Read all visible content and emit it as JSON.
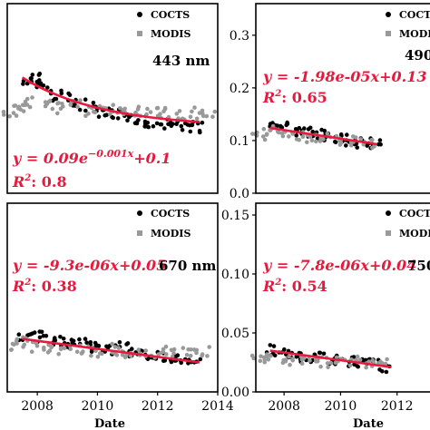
{
  "chart_data": [
    {
      "type": "scatter",
      "panel": "top-left",
      "wavelength": "443 nm",
      "equation": "y = 0.09e^{-0.001x}+0.1",
      "equation_parts": {
        "pre": "y = 0.09e",
        "sup": "−0.001x",
        "post": "+0.1"
      },
      "r2_label": "R",
      "r2_value": ": 0.8",
      "legend": [
        "COCTS",
        "MODIS"
      ],
      "xlim": [
        2007.0,
        2014.0
      ],
      "ylim": [
        0.0,
        0.3
      ],
      "x_ticks": [],
      "y_ticks": [],
      "xlabel": "",
      "ylabel": "",
      "series": [
        {
          "name": "COCTS",
          "color": "#000000",
          "x": [
            2007.6,
            2007.9,
            2008.2,
            2008.6,
            2009.0,
            2009.4,
            2009.8,
            2010.2,
            2010.6,
            2011.0,
            2011.4,
            2011.8,
            2012.2,
            2012.6,
            2013.0,
            2013.3
          ],
          "y": [
            0.178,
            0.185,
            0.17,
            0.155,
            0.15,
            0.14,
            0.135,
            0.128,
            0.125,
            0.12,
            0.118,
            0.113,
            0.11,
            0.108,
            0.105,
            0.104
          ]
        },
        {
          "name": "MODIS",
          "color": "#999999",
          "x": [
            2007.1,
            2007.4,
            2007.8,
            2008.3,
            2008.8,
            2009.3,
            2009.8,
            2010.3,
            2010.8,
            2011.3,
            2011.8,
            2012.3,
            2012.8,
            2013.3,
            2013.7
          ],
          "y": [
            0.13,
            0.138,
            0.145,
            0.14,
            0.135,
            0.138,
            0.13,
            0.132,
            0.128,
            0.13,
            0.126,
            0.128,
            0.125,
            0.127,
            0.128
          ]
        }
      ],
      "fit": {
        "color": "#e8193c",
        "x_range": [
          2007.5,
          2013.4
        ],
        "y_start": 0.183,
        "y_end": 0.104
      }
    },
    {
      "type": "scatter",
      "panel": "top-right",
      "wavelength": "490",
      "equation": "y = -1.98e-05x+0.13",
      "equation_parts": {
        "pre": "y = -1.98e-05x+0.13",
        "sup": "",
        "post": ""
      },
      "r2_label": "R",
      "r2_value": ": 0.65",
      "legend": [
        "COCTS",
        "MODIS"
      ],
      "xlim": [
        2007.0,
        2014.0
      ],
      "ylim": [
        0.0,
        0.36
      ],
      "x_ticks": [],
      "y_ticks": [
        0.0,
        0.1,
        0.2,
        0.3
      ],
      "y_tick_labels": [
        "0.0",
        "0.1",
        "0.2",
        "0.3"
      ],
      "xlabel": "",
      "ylabel": "",
      "series": [
        {
          "name": "COCTS",
          "color": "#000000",
          "x": [
            2007.6,
            2008.0,
            2008.4,
            2008.8,
            2009.2,
            2009.6,
            2010.0,
            2010.4,
            2010.8,
            2011.2
          ],
          "y": [
            0.125,
            0.13,
            0.118,
            0.115,
            0.112,
            0.108,
            0.104,
            0.1,
            0.097,
            0.094
          ]
        },
        {
          "name": "MODIS",
          "color": "#999999",
          "x": [
            2007.1,
            2007.5,
            2008.0,
            2008.5,
            2009.0,
            2009.5,
            2010.0,
            2010.5,
            2011.0
          ],
          "y": [
            0.112,
            0.118,
            0.11,
            0.108,
            0.106,
            0.104,
            0.1,
            0.098,
            0.095
          ]
        }
      ],
      "fit": {
        "color": "#e8193c",
        "x_range": [
          2007.5,
          2011.3
        ],
        "y_start": 0.124,
        "y_end": 0.093
      }
    },
    {
      "type": "scatter",
      "panel": "bottom-left",
      "wavelength": "670 nm",
      "equation": "y = -9.3e-06x+0.05",
      "equation_parts": {
        "pre": "y = -9.3e-06x+0.05",
        "sup": "",
        "post": ""
      },
      "r2_label": "R",
      "r2_value": ": 0.38",
      "legend": [
        "COCTS",
        "MODIS"
      ],
      "xlim": [
        2007.0,
        2014.0
      ],
      "ylim": [
        0.0,
        0.16
      ],
      "x_ticks": [
        2008,
        2010,
        2012,
        2014
      ],
      "x_tick_labels": [
        "2008",
        "2010",
        "2012",
        "2014"
      ],
      "y_ticks": [],
      "xlabel": "Date",
      "ylabel": "",
      "series": [
        {
          "name": "COCTS",
          "color": "#000000",
          "x": [
            2007.6,
            2008.0,
            2008.4,
            2008.8,
            2009.2,
            2009.6,
            2010.0,
            2010.4,
            2010.8,
            2011.2,
            2011.6,
            2012.0,
            2012.4,
            2012.8,
            2013.2
          ],
          "y": [
            0.045,
            0.047,
            0.043,
            0.042,
            0.04,
            0.041,
            0.037,
            0.036,
            0.038,
            0.033,
            0.032,
            0.03,
            0.029,
            0.027,
            0.025
          ]
        },
        {
          "name": "MODIS",
          "color": "#999999",
          "x": [
            2007.1,
            2007.5,
            2008.0,
            2008.5,
            2009.0,
            2009.5,
            2010.0,
            2010.5,
            2011.0,
            2011.5,
            2012.0,
            2012.5,
            2013.0,
            2013.5
          ],
          "y": [
            0.04,
            0.042,
            0.038,
            0.036,
            0.037,
            0.035,
            0.034,
            0.036,
            0.033,
            0.035,
            0.032,
            0.034,
            0.033,
            0.035
          ]
        }
      ],
      "fit": {
        "color": "#e8193c",
        "x_range": [
          2007.5,
          2013.4
        ],
        "y_start": 0.045,
        "y_end": 0.025
      }
    },
    {
      "type": "scatter",
      "panel": "bottom-right",
      "wavelength": "750",
      "equation": "y = -7.8e-06x+0.04",
      "equation_parts": {
        "pre": "y = -7.8e-06x+0.04",
        "sup": "",
        "post": ""
      },
      "r2_label": "R",
      "r2_value": ": 0.54",
      "legend": [
        "COCTS",
        "MODIS"
      ],
      "xlim": [
        2007.0,
        2014.0
      ],
      "ylim": [
        0.0,
        0.16
      ],
      "x_ticks": [
        2008,
        2010,
        2012
      ],
      "x_tick_labels": [
        "2008",
        "2010",
        "2012"
      ],
      "y_ticks": [
        0.0,
        0.05,
        0.1,
        0.15
      ],
      "y_tick_labels": [
        "0.00",
        "0.05",
        "0.10",
        "0.15"
      ],
      "xlabel": "Date",
      "ylabel": "",
      "series": [
        {
          "name": "COCTS",
          "color": "#000000",
          "x": [
            2007.6,
            2008.0,
            2008.4,
            2008.8,
            2009.2,
            2009.6,
            2010.0,
            2010.4,
            2010.8,
            2011.2,
            2011.6
          ],
          "y": [
            0.035,
            0.033,
            0.032,
            0.03,
            0.029,
            0.028,
            0.026,
            0.025,
            0.024,
            0.023,
            0.021
          ]
        },
        {
          "name": "MODIS",
          "color": "#999999",
          "x": [
            2007.1,
            2007.5,
            2008.0,
            2008.5,
            2009.0,
            2009.5,
            2010.0,
            2010.5,
            2011.0,
            2011.5
          ],
          "y": [
            0.028,
            0.03,
            0.027,
            0.026,
            0.028,
            0.025,
            0.026,
            0.027,
            0.025,
            0.026
          ]
        }
      ],
      "fit": {
        "color": "#e8193c",
        "x_range": [
          2007.5,
          2011.8
        ],
        "y_start": 0.035,
        "y_end": 0.021
      }
    }
  ]
}
